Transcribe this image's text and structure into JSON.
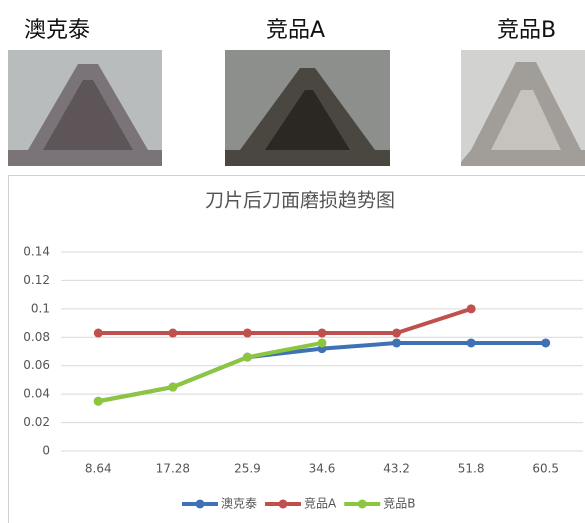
{
  "labels": [
    "澳克泰",
    "竞品A",
    "竞品B"
  ],
  "chart_data": {
    "type": "line",
    "title": "刀片后刀面磨损趋势图",
    "categories": [
      "8.64",
      "17.28",
      "25.9",
      "34.6",
      "43.2",
      "51.8",
      "60.5"
    ],
    "series": [
      {
        "name": "澳克泰",
        "color": "#3f72b5",
        "values": [
          0.035,
          0.045,
          0.066,
          0.072,
          0.076,
          0.076,
          0.076
        ]
      },
      {
        "name": "竞品A",
        "color": "#c0504d",
        "values": [
          0.083,
          0.083,
          0.083,
          0.083,
          0.083,
          0.1,
          null
        ]
      },
      {
        "name": "竞品B",
        "color": "#8cc63f",
        "values": [
          0.035,
          0.045,
          0.066,
          0.076,
          null,
          null,
          null
        ]
      }
    ],
    "ylim": [
      0,
      0.14
    ],
    "yticks": [
      0,
      0.02,
      0.04,
      0.06,
      0.08,
      0.1,
      0.12,
      0.14
    ],
    "grid": true
  }
}
